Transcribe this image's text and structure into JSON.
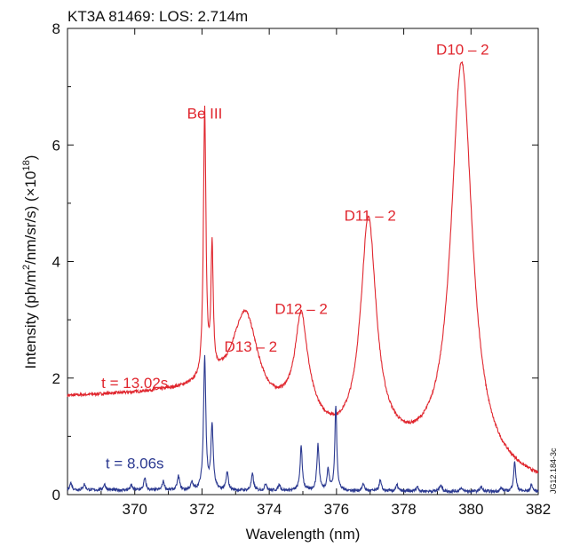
{
  "chart_data": {
    "type": "line",
    "title": "KT3A 81469: LOS: 2.714m",
    "xlabel": "Wavelength (nm)",
    "ylabel_parts": [
      "Intensity (ph/m",
      "2",
      "/nm/sr/s) (×10",
      "18",
      ")"
    ],
    "xlim": [
      368,
      382
    ],
    "ylim": [
      0,
      8
    ],
    "xticks": [
      370,
      372,
      374,
      376,
      378,
      380,
      382
    ],
    "yticks": [
      0,
      2,
      4,
      6,
      8
    ],
    "grid": false,
    "colors": {
      "red": "#e0262e",
      "blue": "#2b3990"
    },
    "series": [
      {
        "name": "t = 13.02s",
        "color": "#e0262e",
        "baseline": [
          [
            368.0,
            1.68
          ],
          [
            369.0,
            1.7
          ],
          [
            370.0,
            1.72
          ],
          [
            371.0,
            1.75
          ],
          [
            371.8,
            1.78
          ],
          [
            372.6,
            1.8
          ],
          [
            373.0,
            1.72
          ],
          [
            373.4,
            1.4
          ],
          [
            374.0,
            1.35
          ],
          [
            374.5,
            1.36
          ],
          [
            375.2,
            1.28
          ],
          [
            375.6,
            1.05
          ],
          [
            376.0,
            0.9
          ],
          [
            376.5,
            0.85
          ],
          [
            377.6,
            0.75
          ],
          [
            378.0,
            0.66
          ],
          [
            378.8,
            0.55
          ],
          [
            379.2,
            0.45
          ],
          [
            380.0,
            0.42
          ],
          [
            380.5,
            0.34
          ],
          [
            381.0,
            0.28
          ],
          [
            381.5,
            0.22
          ],
          [
            382.0,
            0.17
          ]
        ],
        "peaks": [
          {
            "center": 372.08,
            "height": 4.6,
            "width": 0.045
          },
          {
            "center": 372.3,
            "height": 2.15,
            "width": 0.04
          },
          {
            "center": 373.3,
            "height": 0.0,
            "width": 0.3
          },
          {
            "center": 374.95,
            "height": 1.62,
            "width": 0.22
          },
          {
            "center": 376.95,
            "height": 3.8,
            "width": 0.28
          },
          {
            "center": 379.72,
            "height": 6.95,
            "width": 0.38
          }
        ],
        "hump": {
          "center": 373.32,
          "height": 1.6,
          "width": 0.42
        }
      },
      {
        "name": "t = 8.06s",
        "color": "#2b3990",
        "baseline": [
          [
            368.0,
            0.08
          ],
          [
            382.0,
            0.05
          ]
        ],
        "peaks": [
          {
            "center": 368.1,
            "height": 0.12,
            "width": 0.04
          },
          {
            "center": 368.5,
            "height": 0.1,
            "width": 0.04
          },
          {
            "center": 369.1,
            "height": 0.1,
            "width": 0.04
          },
          {
            "center": 369.9,
            "height": 0.08,
            "width": 0.04
          },
          {
            "center": 370.3,
            "height": 0.2,
            "width": 0.04
          },
          {
            "center": 370.85,
            "height": 0.15,
            "width": 0.04
          },
          {
            "center": 371.3,
            "height": 0.24,
            "width": 0.04
          },
          {
            "center": 371.7,
            "height": 0.12,
            "width": 0.04
          },
          {
            "center": 372.08,
            "height": 2.3,
            "width": 0.04
          },
          {
            "center": 372.3,
            "height": 1.1,
            "width": 0.04
          },
          {
            "center": 372.75,
            "height": 0.3,
            "width": 0.04
          },
          {
            "center": 373.5,
            "height": 0.28,
            "width": 0.04
          },
          {
            "center": 373.9,
            "height": 0.12,
            "width": 0.04
          },
          {
            "center": 374.3,
            "height": 0.1,
            "width": 0.04
          },
          {
            "center": 374.95,
            "height": 0.75,
            "width": 0.04
          },
          {
            "center": 375.45,
            "height": 0.78,
            "width": 0.04
          },
          {
            "center": 375.75,
            "height": 0.35,
            "width": 0.04
          },
          {
            "center": 375.98,
            "height": 1.45,
            "width": 0.035
          },
          {
            "center": 376.8,
            "height": 0.12,
            "width": 0.04
          },
          {
            "center": 377.3,
            "height": 0.18,
            "width": 0.04
          },
          {
            "center": 377.8,
            "height": 0.1,
            "width": 0.04
          },
          {
            "center": 378.4,
            "height": 0.08,
            "width": 0.04
          },
          {
            "center": 379.1,
            "height": 0.12,
            "width": 0.04
          },
          {
            "center": 379.7,
            "height": 0.06,
            "width": 0.04
          },
          {
            "center": 380.3,
            "height": 0.08,
            "width": 0.04
          },
          {
            "center": 380.9,
            "height": 0.06,
            "width": 0.04
          },
          {
            "center": 381.3,
            "height": 0.5,
            "width": 0.04
          },
          {
            "center": 381.8,
            "height": 0.12,
            "width": 0.04
          }
        ]
      }
    ],
    "annotations": [
      {
        "text": "Be III",
        "x": 372.08,
        "y": 6.45,
        "color": "red"
      },
      {
        "text": "D13 – 2",
        "x": 373.45,
        "y": 2.45,
        "color": "red"
      },
      {
        "text": "D12 – 2",
        "x": 374.95,
        "y": 3.1,
        "color": "red"
      },
      {
        "text": "D11 – 2",
        "x": 377.0,
        "y": 4.7,
        "color": "red"
      },
      {
        "text": "D10 – 2",
        "x": 379.75,
        "y": 7.55,
        "color": "red"
      },
      {
        "text": "t = 13.02s",
        "x": 370.0,
        "y": 1.83,
        "color": "red"
      },
      {
        "text": "t = 8.06s",
        "x": 370.0,
        "y": 0.45,
        "color": "blue"
      }
    ],
    "stamp": "JG12.184-3c"
  }
}
